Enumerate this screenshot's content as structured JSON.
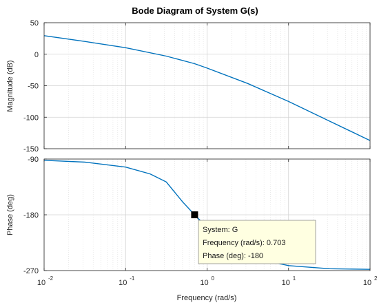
{
  "chart_data": {
    "type": "line",
    "title": "Bode Diagram of System G(s)",
    "xlabel": "Frequency  (rad/s)",
    "x_scale": "log",
    "xlim": [
      0.01,
      100
    ],
    "x_tick_labels": [
      {
        "base": "10",
        "exp": "-2"
      },
      {
        "base": "10",
        "exp": "-1"
      },
      {
        "base": "10",
        "exp": "0"
      },
      {
        "base": "10",
        "exp": "1"
      },
      {
        "base": "10",
        "exp": "2"
      }
    ],
    "grid": true,
    "series_color": "#0072BD",
    "subplots": [
      {
        "ylabel": "Magnitude (dB)",
        "ylim": [
          -150,
          50
        ],
        "y_ticks": [
          50,
          0,
          -50,
          -100,
          -150
        ],
        "y_tick_labels": [
          "50",
          "0",
          "-50",
          "-100",
          "-150"
        ],
        "series": [
          {
            "x": [
              0.01,
              0.0316,
              0.1,
              0.316,
              0.703,
              1,
              3.16,
              10,
              31.6,
              100
            ],
            "y": [
              29.5,
              20.3,
              10.3,
              -3.0,
              -15.0,
              -22.0,
              -46.5,
              -75.0,
              -106.0,
              -137.0
            ]
          }
        ]
      },
      {
        "ylabel": "Phase (deg)",
        "ylim": [
          -270,
          -90
        ],
        "y_ticks": [
          -90,
          -180,
          -270
        ],
        "y_tick_labels": [
          "-90",
          "-180",
          "-270"
        ],
        "series": [
          {
            "x": [
              0.01,
              0.0316,
              0.1,
              0.2,
              0.316,
              0.5,
              0.703,
              1,
              2,
              3.16,
              10,
              31.6,
              100
            ],
            "y": [
              -92,
              -95,
              -103,
              -114,
              -127,
              -159,
              -180,
              -200,
              -235,
              -248,
              -262,
              -267,
              -268
            ]
          }
        ]
      }
    ],
    "datatip": {
      "marker_x": 0.703,
      "marker_y": -180,
      "lines": [
        "System: G",
        "Frequency (rad/s): 0.703",
        "Phase (deg): -180"
      ]
    }
  }
}
